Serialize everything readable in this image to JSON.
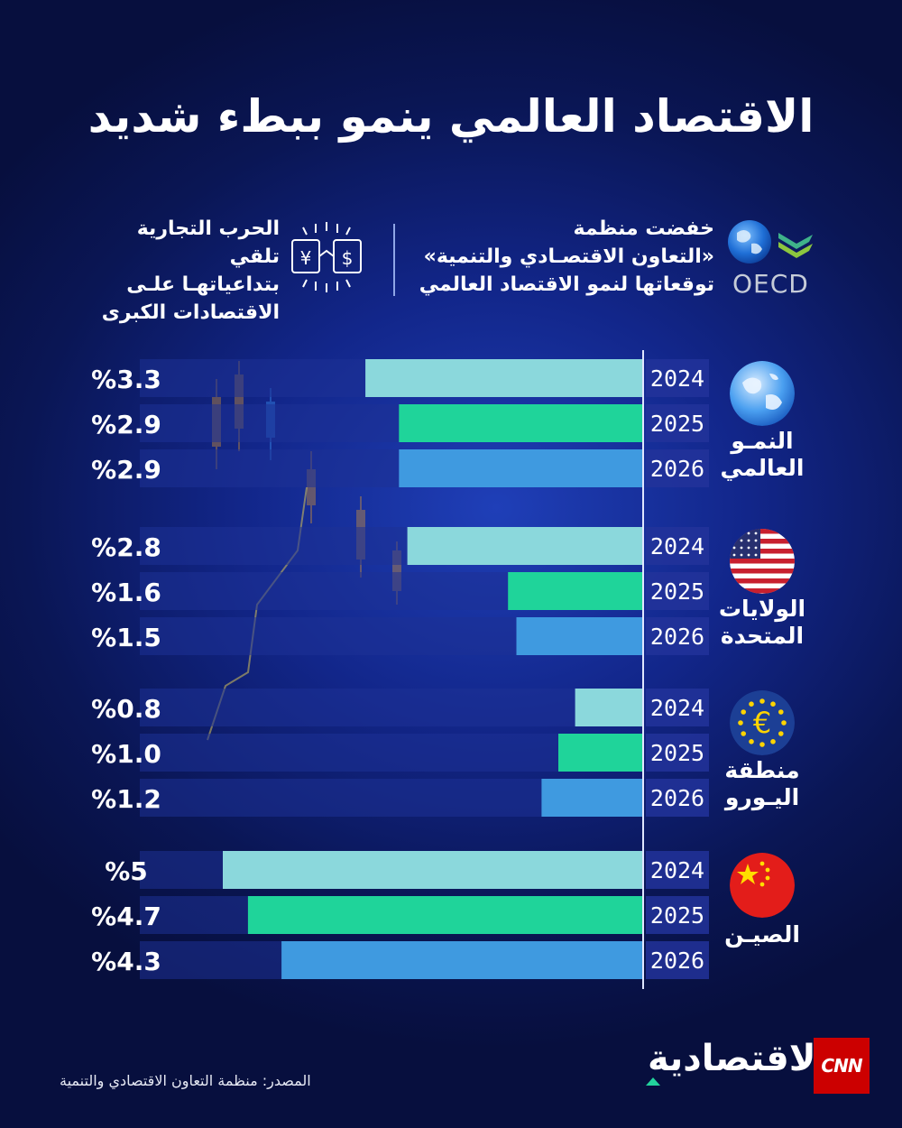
{
  "header": {
    "title": "الاقتصاد العالمي ينمو ببطء شديد"
  },
  "info": {
    "oecd_lines": [
      "خفضت منظمة",
      "«التعاون الاقتصـادي والتنمية»",
      "توقعاتها لنمو الاقتصاد العالمي"
    ],
    "oecd_logo_text": "OECD",
    "trade_lines": [
      "الحرب التجارية تلقي",
      "بتداعياتهـا علـى",
      "الاقتصادات الكبرى"
    ],
    "trade_icon_symbols": [
      "¥",
      "$"
    ]
  },
  "colors": {
    "bar_2024": "#8bd8dc",
    "bar_2025": "#1fd49a",
    "bar_2026": "#3f9ae0",
    "track": "#1d3296"
  },
  "chart_data": {
    "type": "bar",
    "orientation": "horizontal",
    "title": "الاقتصاد العالمي ينمو ببطء شديد",
    "years": [
      "2024",
      "2025",
      "2026"
    ],
    "unit": "%",
    "xlim": [
      0,
      5.5
    ],
    "groups": [
      {
        "region_lines": [
          "النمـو",
          "العالمي"
        ],
        "flag": "globe-icon",
        "values": [
          3.3,
          2.9,
          2.9
        ],
        "labels": [
          "%3.3",
          "%2.9",
          "%2.9"
        ]
      },
      {
        "region_lines": [
          "الولايات",
          "المتحدة"
        ],
        "flag": "us-flag-icon",
        "values": [
          2.8,
          1.6,
          1.5
        ],
        "labels": [
          "%2.8",
          "%1.6",
          "%1.5"
        ]
      },
      {
        "region_lines": [
          "منطقة",
          "اليـورو"
        ],
        "flag": "eu-flag-icon",
        "values": [
          0.8,
          1.0,
          1.2
        ],
        "labels": [
          "%0.8",
          "%1.0",
          "%1.2"
        ]
      },
      {
        "region_lines": [
          "الصيـن"
        ],
        "flag": "china-flag-icon",
        "values": [
          5,
          4.7,
          4.3
        ],
        "labels": [
          "%5",
          "%4.7",
          "%4.3"
        ]
      }
    ]
  },
  "footer": {
    "source": "المصدر: منظمة التعاون الاقتصادي والتنمية",
    "cnn": "CNN",
    "brand": "الاقتصادية"
  }
}
